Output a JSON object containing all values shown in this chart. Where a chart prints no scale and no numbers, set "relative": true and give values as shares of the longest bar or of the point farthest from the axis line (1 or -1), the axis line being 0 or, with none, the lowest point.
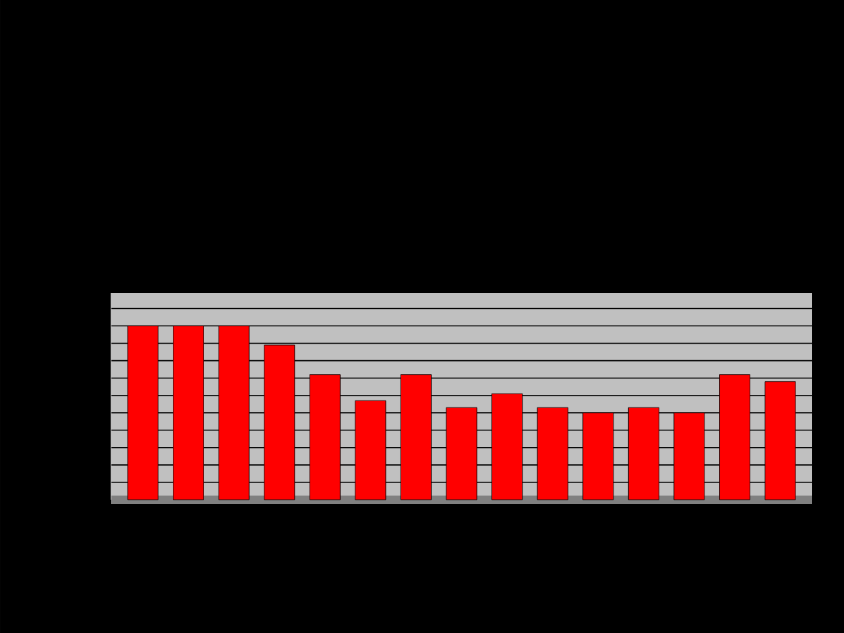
{
  "chart_data": {
    "type": "bar",
    "relative": true,
    "categories": [
      null,
      null,
      null,
      null,
      null,
      null,
      null,
      null,
      null,
      null,
      null,
      null,
      null,
      null,
      null
    ],
    "values": [
      1,
      1,
      1,
      0.89,
      0.72,
      0.57,
      0.72,
      0.53,
      0.61,
      0.53,
      0.5,
      0.53,
      0.5,
      0.72,
      0.68
    ],
    "color": "#ff0000",
    "grid": true
  }
}
